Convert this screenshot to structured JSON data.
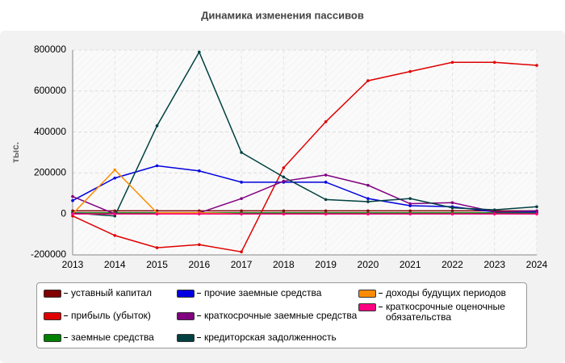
{
  "chart_data": {
    "type": "line",
    "title": "Динамика изменения пассивов",
    "y_label": "тыс.",
    "categories": [
      "2013",
      "2014",
      "2015",
      "2016",
      "2017",
      "2018",
      "2019",
      "2020",
      "2021",
      "2022",
      "2023",
      "2024"
    ],
    "ylim": [
      -200000,
      800000
    ],
    "yticks": [
      -200000,
      0,
      200000,
      400000,
      600000,
      800000
    ],
    "grid": true,
    "series": [
      {
        "name": "уставный капитал",
        "color": "#800000",
        "values": [
          15000,
          15000,
          15000,
          15000,
          15000,
          15000,
          15000,
          15000,
          15000,
          15000,
          15000,
          15000
        ]
      },
      {
        "name": "прибыль (убыток)",
        "color": "#e00000",
        "values": [
          -10000,
          -105000,
          -165000,
          -150000,
          -185000,
          225000,
          450000,
          650000,
          695000,
          740000,
          740000,
          725000
        ]
      },
      {
        "name": "заемные средства",
        "color": "#008000",
        "values": [
          5000,
          5000,
          5000,
          5000,
          5000,
          5000,
          5000,
          5000,
          5000,
          5000,
          5000,
          5000
        ]
      },
      {
        "name": "прочие заемные средства",
        "color": "#0000e0",
        "values": [
          65000,
          175000,
          235000,
          210000,
          155000,
          155000,
          155000,
          75000,
          40000,
          35000,
          10000,
          10000
        ]
      },
      {
        "name": "краткосрочные заемные средства",
        "color": "#800080",
        "values": [
          85000,
          0,
          0,
          5000,
          75000,
          160000,
          190000,
          140000,
          50000,
          55000,
          10000,
          15000
        ]
      },
      {
        "name": "кредиторская задолженность",
        "color": "#004040",
        "values": [
          5000,
          -10000,
          430000,
          790000,
          300000,
          180000,
          70000,
          60000,
          75000,
          30000,
          20000,
          35000
        ]
      },
      {
        "name": "доходы будущих периодов",
        "color": "#ff8c00",
        "values": [
          0,
          215000,
          5000,
          5000,
          0,
          0,
          0,
          0,
          0,
          0,
          0,
          0
        ]
      },
      {
        "name": "краткосрочные оценочные обязательства",
        "color": "#ff0080",
        "values": [
          0,
          0,
          0,
          0,
          0,
          0,
          0,
          0,
          0,
          0,
          0,
          0
        ]
      }
    ]
  }
}
